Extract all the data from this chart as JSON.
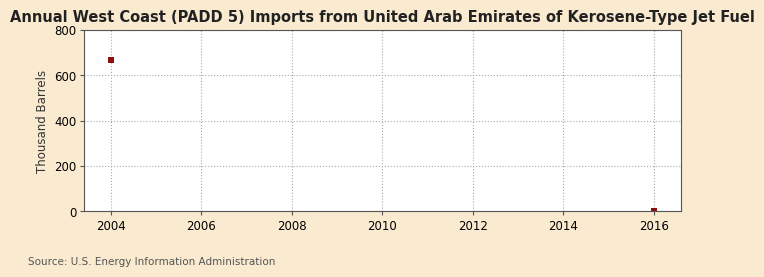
{
  "title": "Annual West Coast (PADD 5) Imports from United Arab Emirates of Kerosene-Type Jet Fuel",
  "ylabel": "Thousand Barrels",
  "source": "Source: U.S. Energy Information Administration",
  "figure_bg_color": "#faebd0",
  "plot_bg_color": "#ffffff",
  "data_x": [
    2004,
    2016
  ],
  "data_y": [
    667,
    4
  ],
  "marker_color": "#8b1010",
  "xlim": [
    2003.4,
    2016.6
  ],
  "ylim": [
    0,
    800
  ],
  "yticks": [
    0,
    200,
    400,
    600,
    800
  ],
  "xticks": [
    2004,
    2006,
    2008,
    2010,
    2012,
    2014,
    2016
  ],
  "title_fontsize": 10.5,
  "ylabel_fontsize": 8.5,
  "source_fontsize": 7.5,
  "tick_fontsize": 8.5,
  "marker_size": 4,
  "grid_color": "#aaaaaa",
  "spine_color": "#555555"
}
